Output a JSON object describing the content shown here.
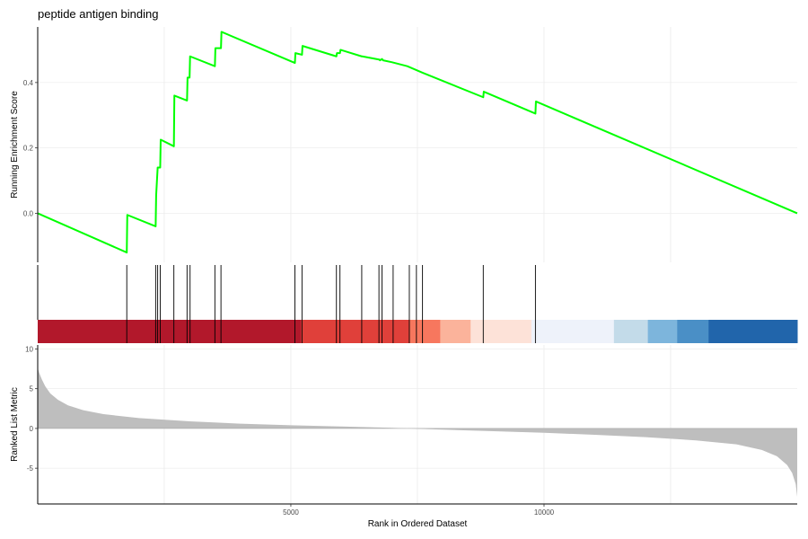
{
  "chart_data": {
    "type": "line",
    "title": "peptide antigen binding",
    "x_label": "Rank in Ordered Dataset",
    "x_range": [
      1,
      15000
    ],
    "x_ticks": [
      5000,
      10000
    ],
    "colors": {
      "curve": "#00ff00",
      "metric_fill": "#bebebe",
      "hit": "#000000",
      "grid": "#ebebeb"
    },
    "enrichment_panel": {
      "ylabel": "Running Enrichment Score",
      "ylim": [
        -0.15,
        0.57
      ],
      "y_ticks": [
        "0.0",
        "0.2",
        "0.4"
      ],
      "y_tick_values": [
        0.0,
        0.2,
        0.4
      ],
      "curve": [
        [
          1,
          0.0
        ],
        [
          1760,
          -0.12
        ],
        [
          1770,
          -0.005
        ],
        [
          2330,
          -0.04
        ],
        [
          2340,
          0.055
        ],
        [
          2370,
          0.14
        ],
        [
          2420,
          0.14
        ],
        [
          2430,
          0.225
        ],
        [
          2690,
          0.205
        ],
        [
          2700,
          0.36
        ],
        [
          2950,
          0.345
        ],
        [
          2960,
          0.415
        ],
        [
          3000,
          0.415
        ],
        [
          3010,
          0.48
        ],
        [
          3500,
          0.45
        ],
        [
          3510,
          0.505
        ],
        [
          3620,
          0.505
        ],
        [
          3630,
          0.555
        ],
        [
          5080,
          0.46
        ],
        [
          5090,
          0.49
        ],
        [
          5220,
          0.485
        ],
        [
          5230,
          0.512
        ],
        [
          5900,
          0.48
        ],
        [
          5910,
          0.49
        ],
        [
          5970,
          0.49
        ],
        [
          5980,
          0.5
        ],
        [
          6400,
          0.48
        ],
        [
          6410,
          0.48
        ],
        [
          6750,
          0.47
        ],
        [
          6760,
          0.468
        ],
        [
          6800,
          0.472
        ],
        [
          6820,
          0.468
        ],
        [
          7000,
          0.462
        ],
        [
          7300,
          0.45
        ],
        [
          7600,
          0.43
        ],
        [
          8800,
          0.355
        ],
        [
          8810,
          0.372
        ],
        [
          9830,
          0.305
        ],
        [
          9840,
          0.342
        ],
        [
          15000,
          0.0
        ]
      ]
    },
    "hit_positions": [
      1760,
      2330,
      2370,
      2420,
      2690,
      2950,
      3010,
      3500,
      3620,
      5080,
      5220,
      5900,
      5970,
      6400,
      6740,
      6800,
      7020,
      7340,
      7480,
      7600,
      8800,
      9830
    ],
    "rank_color_bands": [
      {
        "from": 1,
        "to": 5200,
        "color": "#b2182b"
      },
      {
        "from": 5200,
        "to": 7350,
        "color": "#e0403a"
      },
      {
        "from": 7350,
        "to": 7950,
        "color": "#f7775e"
      },
      {
        "from": 7950,
        "to": 8550,
        "color": "#fbb39b"
      },
      {
        "from": 8550,
        "to": 9750,
        "color": "#fde2d8"
      },
      {
        "from": 9750,
        "to": 11380,
        "color": "#eef2fa"
      },
      {
        "from": 11380,
        "to": 12050,
        "color": "#c3dbe9"
      },
      {
        "from": 12050,
        "to": 12630,
        "color": "#7db5dc"
      },
      {
        "from": 12630,
        "to": 13250,
        "color": "#4a8fc6"
      },
      {
        "from": 13250,
        "to": 15000,
        "color": "#2165ab"
      }
    ],
    "ranked_metric_panel": {
      "ylabel": "Ranked List Metric",
      "ylim": [
        -9.5,
        10.5
      ],
      "y_ticks": [
        "10",
        "5",
        "0",
        "-5"
      ],
      "y_tick_values": [
        10,
        5,
        0,
        -5
      ],
      "profile": [
        [
          1,
          7.6
        ],
        [
          30,
          7.0
        ],
        [
          80,
          6.2
        ],
        [
          150,
          5.3
        ],
        [
          250,
          4.4
        ],
        [
          400,
          3.6
        ],
        [
          600,
          2.9
        ],
        [
          900,
          2.3
        ],
        [
          1300,
          1.8
        ],
        [
          2000,
          1.3
        ],
        [
          3000,
          0.9
        ],
        [
          4000,
          0.6
        ],
        [
          5000,
          0.4
        ],
        [
          6000,
          0.25
        ],
        [
          7000,
          0.08
        ],
        [
          7300,
          0.0
        ],
        [
          8000,
          -0.15
        ],
        [
          9000,
          -0.35
        ],
        [
          10000,
          -0.55
        ],
        [
          11000,
          -0.8
        ],
        [
          12000,
          -1.1
        ],
        [
          13000,
          -1.5
        ],
        [
          13800,
          -2.0
        ],
        [
          14300,
          -2.7
        ],
        [
          14600,
          -3.5
        ],
        [
          14800,
          -4.6
        ],
        [
          14900,
          -5.6
        ],
        [
          14970,
          -7.0
        ],
        [
          15000,
          -8.6
        ]
      ]
    }
  }
}
